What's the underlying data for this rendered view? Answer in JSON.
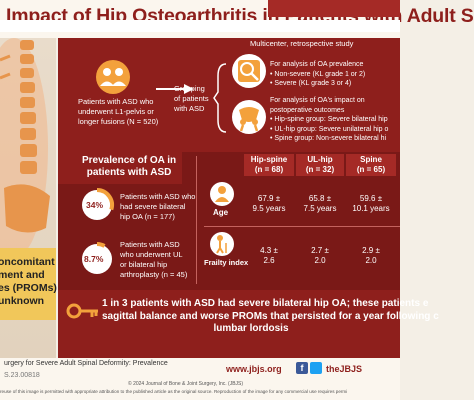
{
  "title": "Impact of Hip Osteoarthritis in Patients with Adult S",
  "side_note": {
    "line1": "oncomitant",
    "line2": "ment and",
    "line3": "es (PROMs)",
    "line4": "unknown"
  },
  "study_label": "Multicenter, retrospective study",
  "patients": {
    "line1": "Patients with ASD who",
    "line2": "underwent L1-pelvis or",
    "line3": "longer fusions (N = 520)"
  },
  "grouping": {
    "line1": "Grouping",
    "line2": "of patients",
    "line3": "with ASD"
  },
  "oa_prevalence": {
    "heading1": "For analysis of OA prevalence",
    "item1": "• Non-severe (KL grade 1 or 2)",
    "item2": "• Severe (KL grade 3 or 4)"
  },
  "oa_impact": {
    "heading1": "For analysis of OA's impact on",
    "heading2": "postoperative outcomes",
    "item1": "• Hip-spine group: Severe bilateral hip",
    "item2": "• UL-hip group: Severe unilateral hip o",
    "item3": "• Spine group: Non-severe bilateral hi"
  },
  "prevalence": {
    "heading1": "Prevalence of OA in",
    "heading2": "patients with ASD",
    "stat1": {
      "pct": "34%",
      "line1": "Patients with ASD who",
      "line2": "had severe bilateral",
      "line3": "hip OA (n = 177)"
    },
    "stat2": {
      "pct": "8.7%",
      "line1": "Patients with ASD",
      "line2": "who underwent UL",
      "line3": "or bilateral hip",
      "line4": "arthroplasty (n = 45)"
    }
  },
  "table": {
    "cols": [
      {
        "line1": "Hip-spine",
        "line2": "(n = 68)"
      },
      {
        "line1": "UL-hip",
        "line2": "(n = 32)"
      },
      {
        "line1": "Spine",
        "line2": "(n = 65)"
      }
    ],
    "rows": [
      {
        "label": "Age",
        "cells": [
          {
            "line1": "67.9 ±",
            "line2": "9.5 years"
          },
          {
            "line1": "65.8 ±",
            "line2": "7.5 years"
          },
          {
            "line1": "59.6 ±",
            "line2": "10.1 years"
          }
        ]
      },
      {
        "label": "Frailty index",
        "cells": [
          {
            "line1": "4.3 ±",
            "line2": "2.6"
          },
          {
            "line1": "2.7 ±",
            "line2": "2.0"
          },
          {
            "line1": "2.9 ±",
            "line2": "2.0"
          }
        ]
      }
    ]
  },
  "conclusion": {
    "line1": "1 in 3 patients with ASD had severe bilateral hip OA; these patients e",
    "line2": "sagittal balance and worse PROMs that persisted for a year following c",
    "line3": "lumbar lordosis"
  },
  "footer": {
    "citation": "urgery for Severe Adult Spinal Deformity: Prevalence",
    "doi": "S.23.00818",
    "site": "www.jbjs.org",
    "social": "theJBJS",
    "copyright": "© 2024 Journal of Bone & Joint Surgery, Inc. (JBJS)",
    "license": "reuse of this image is permitted with appropriate attribution to the published article as the original source. Reproduction of the image for any commercial use requires permi"
  },
  "colors": {
    "maroon": "#8e1f1c",
    "dark_maroon": "#7a1917",
    "orange": "#f3a13c",
    "yellow": "#f1c75a"
  }
}
